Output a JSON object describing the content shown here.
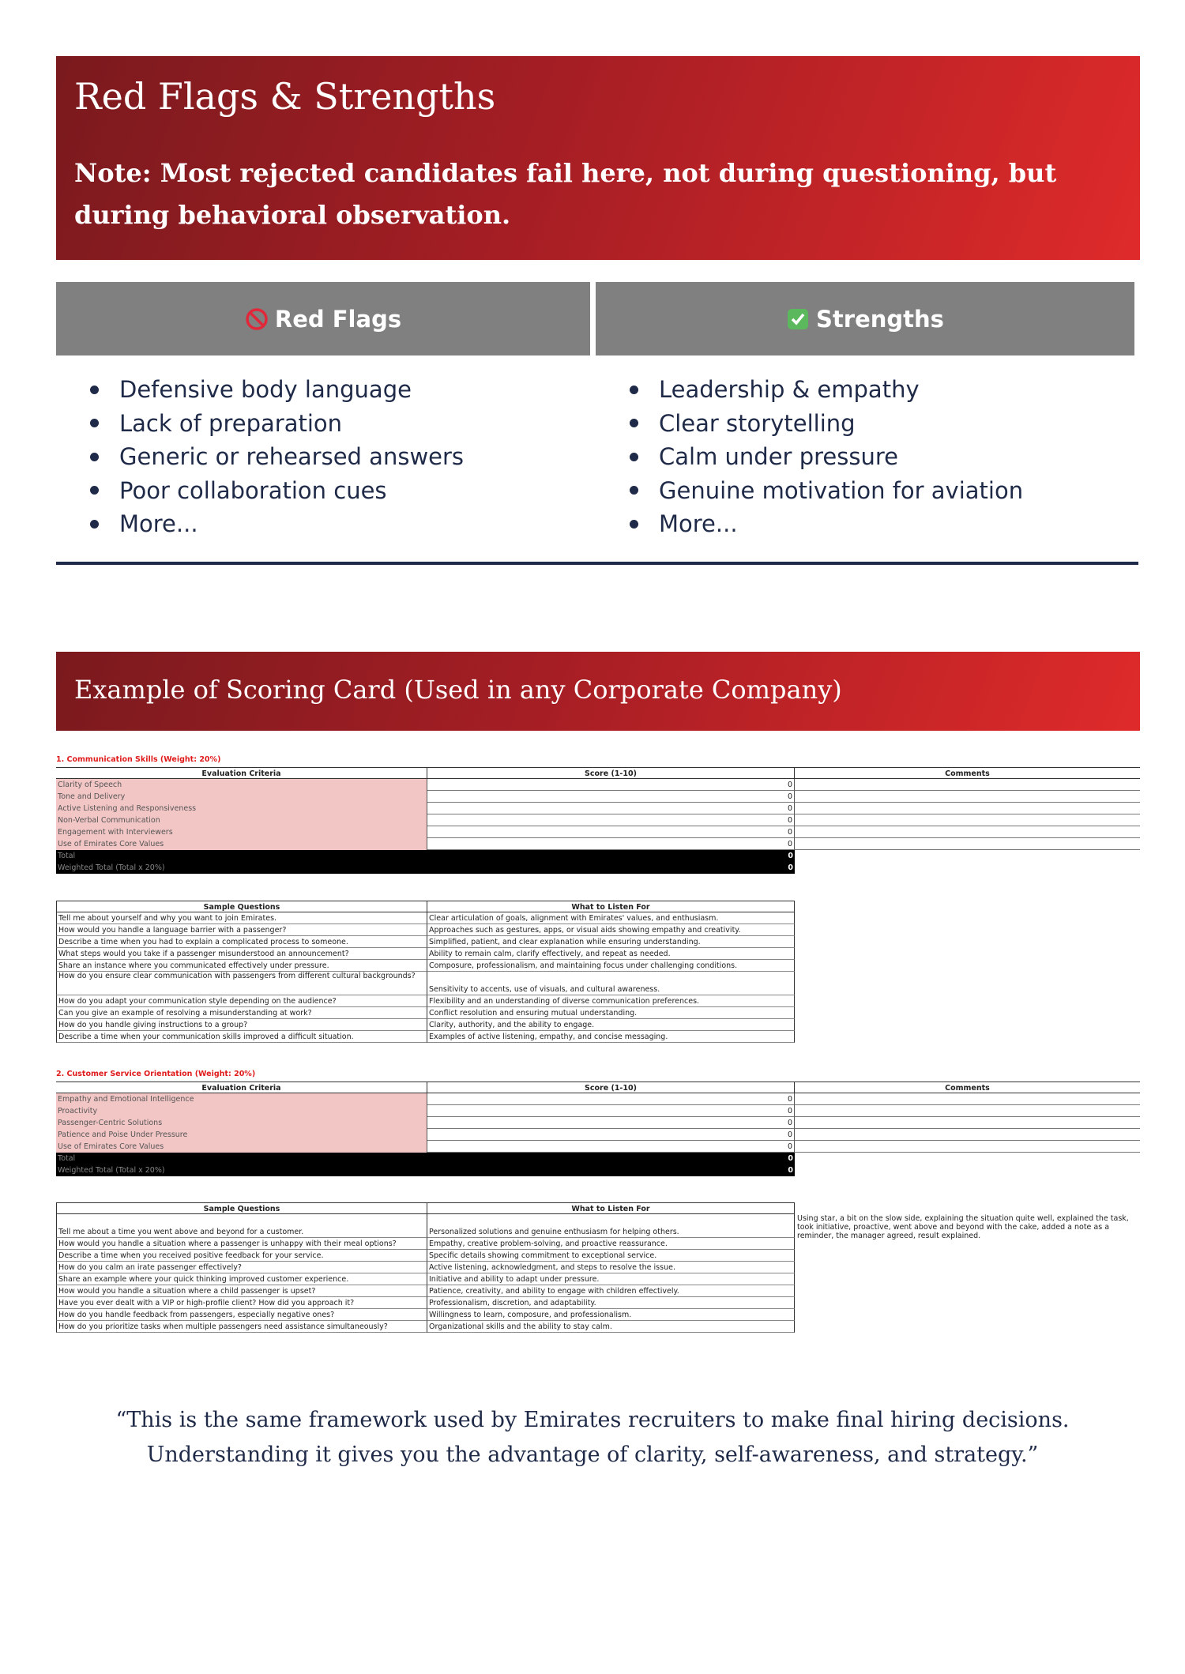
{
  "header": {
    "title": "Red Flags & Strengths",
    "note": "Note: Most rejected candidates fail here, not during questioning, but during behavioral observation."
  },
  "red_flags": {
    "title": "Red Flags",
    "items": [
      "Defensive body language",
      "Lack of preparation",
      "Generic or rehearsed answers",
      "Poor collaboration cues",
      "More..."
    ]
  },
  "strengths": {
    "title": "Strengths",
    "items": [
      "Leadership & empathy",
      "Clear storytelling",
      "Calm under pressure",
      "Genuine motivation for aviation",
      "More..."
    ]
  },
  "scoring_title": "Example of Scoring Card (Used in any Corporate Company)",
  "scoring_card": [
    {
      "label": "1. Communication Skills (Weight: 20%)",
      "headers": [
        "Evaluation Criteria",
        "Score (1-10)",
        "Comments"
      ],
      "criteria": [
        [
          "Clarity of Speech",
          0
        ],
        [
          "Tone and Delivery",
          0
        ],
        [
          "Active Listening and Responsiveness",
          0
        ],
        [
          "Non-Verbal Communication",
          0
        ],
        [
          "Engagement with Interviewers",
          0
        ],
        [
          "Use of Emirates Core Values",
          0
        ]
      ],
      "totals": [
        [
          "Total",
          0
        ],
        [
          "Weighted Total (Total x 20%)",
          0
        ]
      ],
      "question_headers": [
        "Sample Questions",
        "What to Listen For"
      ],
      "questions": [
        [
          "Tell me about yourself and why you want to join Emirates.",
          "Clear articulation of goals, alignment with Emirates' values, and enthusiasm."
        ],
        [
          "How would you handle a language barrier with a passenger?",
          "Approaches such as gestures, apps, or visual aids showing empathy and creativity."
        ],
        [
          "Describe a time when you had to explain a complicated process to someone.",
          "Simplified, patient, and clear explanation while ensuring understanding."
        ],
        [
          "What steps would you take if a passenger misunderstood an announcement?",
          "Ability to remain calm, clarify effectively, and repeat as needed."
        ],
        [
          "Share an instance where you communicated effectively under pressure.",
          "Composure, professionalism, and maintaining focus under challenging conditions."
        ],
        [
          "How do you ensure clear communication with passengers from different cultural backgrounds?",
          "Sensitivity to accents, use of visuals, and cultural awareness."
        ],
        [
          "How do you adapt your communication style depending on the audience?",
          "Flexibility and an understanding of diverse communication preferences."
        ],
        [
          "Can you give an example of resolving a misunderstanding at work?",
          "Conflict resolution and ensuring mutual understanding."
        ],
        [
          "How do you handle giving instructions to a group?",
          "Clarity, authority, and the ability to engage."
        ],
        [
          "Describe a time when your communication skills improved a difficult situation.",
          "Examples of active listening, empathy, and concise messaging."
        ]
      ]
    },
    {
      "label": "2. Customer Service Orientation (Weight: 20%)",
      "headers": [
        "Evaluation Criteria",
        "Score (1-10)",
        "Comments"
      ],
      "criteria": [
        [
          "Empathy and Emotional Intelligence",
          0
        ],
        [
          "Proactivity",
          0
        ],
        [
          "Passenger-Centric Solutions",
          0
        ],
        [
          "Patience and Poise Under Pressure",
          0
        ],
        [
          "Use of Emirates Core Values",
          0
        ]
      ],
      "totals": [
        [
          "Total",
          0
        ],
        [
          "Weighted Total (Total x 20%)",
          0
        ]
      ],
      "question_headers": [
        "Sample Questions",
        "What to Listen For"
      ],
      "comment": "Using star, a bit on the slow side, explaining the situation quite well, explained the task, took initiative, proactive, went above and beyond with the cake, added a note as a reminder, the manager agreed, result explained.",
      "questions": [
        [
          "Tell me about a time you went above and beyond for a customer.",
          "Personalized solutions and genuine enthusiasm for helping others."
        ],
        [
          "How would you handle a situation where a passenger is unhappy with their meal options?",
          "Empathy, creative problem-solving, and proactive reassurance."
        ],
        [
          "Describe a time when you received positive feedback for your service.",
          "Specific details showing commitment to exceptional service."
        ],
        [
          "How do you calm an irate passenger effectively?",
          "Active listening, acknowledgment, and steps to resolve the issue."
        ],
        [
          "Share an example where your quick thinking improved customer experience.",
          "Initiative and ability to adapt under pressure."
        ],
        [
          "How would you handle a situation where a child passenger is upset?",
          "Patience, creativity, and ability to engage with children effectively."
        ],
        [
          "Have you ever dealt with a VIP or high-profile client? How did you approach it?",
          "Professionalism, discretion, and adaptability."
        ],
        [
          "How do you handle feedback from passengers, especially negative ones?",
          "Willingness to learn, composure, and professionalism."
        ],
        [
          "How do you prioritize tasks when multiple passengers need assistance simultaneously?",
          "Organizational skills and the ability to stay calm."
        ]
      ]
    }
  ],
  "quote": [
    "“This is the same framework used by Emirates recruiters to make final hiring decisions.",
    "Understanding it gives you the advantage of clarity, self-awareness, and strategy.”"
  ]
}
